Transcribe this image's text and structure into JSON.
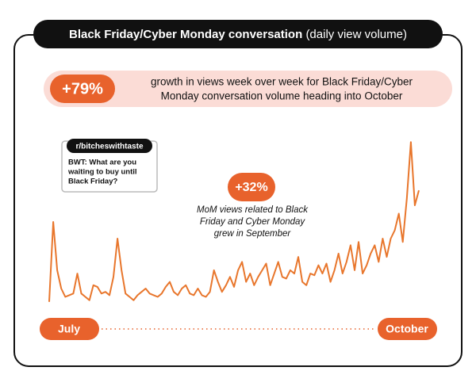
{
  "chart_data": {
    "type": "line",
    "title": "Black Friday/Cyber Monday conversation",
    "subtitle": "(daily view volume)",
    "headline_stat": "+79%",
    "headline_text": [
      "growth in views week over week for Black Friday/Cyber",
      "Monday conversation volume heading into October"
    ],
    "post": {
      "source": "r/bitcheswithtaste",
      "text": [
        "BWT: What are you",
        "waiting to buy until",
        "Black Friday?"
      ]
    },
    "annotation_stat": "+32%",
    "annotation_text": [
      "MoM views related to Black",
      "Friday and Cyber Monday",
      "grew in September"
    ],
    "x_range_labels": [
      "July",
      "October"
    ],
    "color": "#e8762c",
    "ylim": [
      0,
      100
    ],
    "values": [
      2,
      50,
      21,
      10,
      5,
      6,
      7,
      19,
      7,
      5,
      3,
      12,
      11,
      7,
      8,
      6,
      17,
      40,
      21,
      7,
      5,
      3,
      6,
      8,
      10,
      7,
      6,
      5,
      7,
      11,
      14,
      8,
      6,
      10,
      12,
      7,
      6,
      10,
      6,
      5,
      8,
      21,
      14,
      8,
      12,
      17,
      11,
      21,
      26,
      14,
      19,
      12,
      17,
      21,
      25,
      12,
      19,
      26,
      17,
      16,
      21,
      19,
      29,
      14,
      12,
      19,
      18,
      24,
      19,
      25,
      14,
      21,
      31,
      19,
      26,
      36,
      21,
      38,
      19,
      24,
      31,
      36,
      26,
      40,
      29,
      40,
      45,
      55,
      38,
      64,
      98,
      60,
      69
    ]
  }
}
